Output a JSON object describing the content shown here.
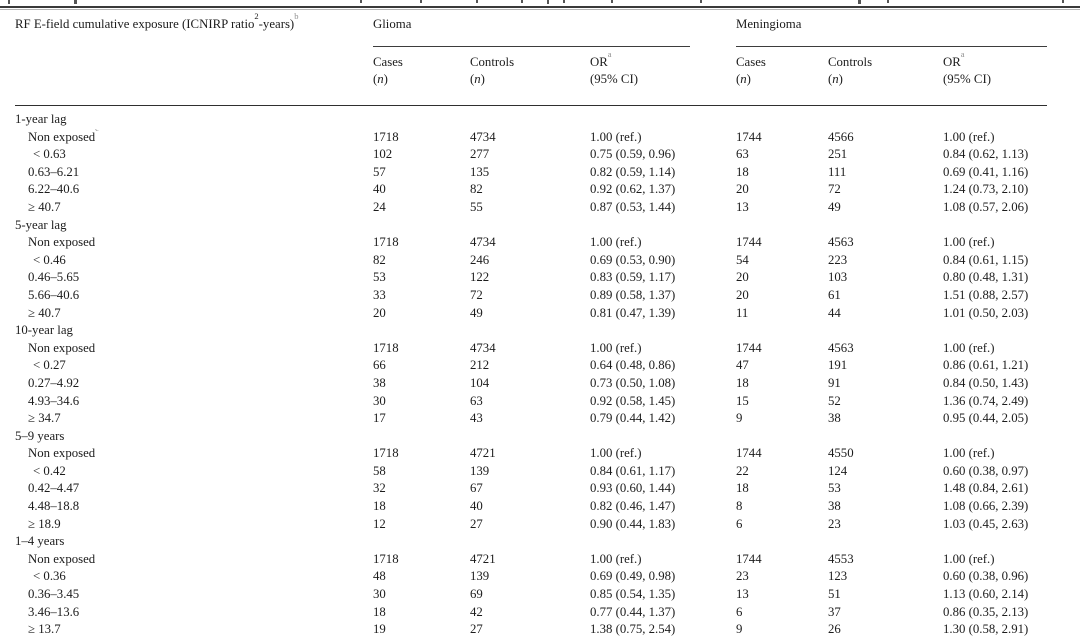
{
  "colors": {
    "text": "#1c1c1c",
    "rule": "#2f2f2f",
    "footnote_marker": "#8e8e8e",
    "background": "#ffffff"
  },
  "table": {
    "stub_header": {
      "text_before": "RF E-field cumulative exposure (ICNIRP ratio",
      "sup_unit": "2",
      "text_after": "-years)",
      "sup_footnote": "b"
    },
    "group_headers": {
      "glioma": "Glioma",
      "meningioma": "Meningioma"
    },
    "column_headers": {
      "cases_line1": "Cases",
      "controls_line1": "Controls",
      "or_label": "OR",
      "or_sup": "a",
      "or_line2": "(95% CI)",
      "n_paren_open": "(",
      "n_italic": "n",
      "n_paren_close": ")"
    },
    "sections": [
      {
        "label": "1-year lag",
        "rows": [
          {
            "label": "Non exposed",
            "sup": "c",
            "extra_indent": false,
            "g": [
              "1718",
              "4734",
              "1.00 (ref.)"
            ],
            "m": [
              "1744",
              "4566",
              "1.00 (ref.)"
            ]
          },
          {
            "label": "< 0.63",
            "extra_indent": true,
            "g": [
              "102",
              "277",
              "0.75 (0.59, 0.96)"
            ],
            "m": [
              "63",
              "251",
              "0.84 (0.62, 1.13)"
            ]
          },
          {
            "label": "0.63–6.21",
            "extra_indent": false,
            "g": [
              "57",
              "135",
              "0.82 (0.59, 1.14)"
            ],
            "m": [
              "18",
              "111",
              "0.69 (0.41, 1.16)"
            ]
          },
          {
            "label": "6.22–40.6",
            "extra_indent": false,
            "g": [
              "40",
              "82",
              "0.92 (0.62, 1.37)"
            ],
            "m": [
              "20",
              "72",
              "1.24 (0.73, 2.10)"
            ]
          },
          {
            "label": "≥ 40.7",
            "extra_indent": false,
            "g": [
              "24",
              "55",
              "0.87 (0.53, 1.44)"
            ],
            "m": [
              "13",
              "49",
              "1.08 (0.57, 2.06)"
            ]
          }
        ]
      },
      {
        "label": "5-year lag",
        "rows": [
          {
            "label": "Non exposed",
            "extra_indent": false,
            "g": [
              "1718",
              "4734",
              "1.00 (ref.)"
            ],
            "m": [
              "1744",
              "4563",
              "1.00 (ref.)"
            ]
          },
          {
            "label": "< 0.46",
            "extra_indent": true,
            "g": [
              "82",
              "246",
              "0.69 (0.53, 0.90)"
            ],
            "m": [
              "54",
              "223",
              "0.84 (0.61, 1.15)"
            ]
          },
          {
            "label": "0.46–5.65",
            "extra_indent": false,
            "g": [
              "53",
              "122",
              "0.83 (0.59, 1.17)"
            ],
            "m": [
              "20",
              "103",
              "0.80 (0.48, 1.31)"
            ]
          },
          {
            "label": "5.66–40.6",
            "extra_indent": false,
            "g": [
              "33",
              "72",
              "0.89 (0.58, 1.37)"
            ],
            "m": [
              "20",
              "61",
              "1.51 (0.88, 2.57)"
            ]
          },
          {
            "label": "≥ 40.7",
            "extra_indent": false,
            "g": [
              "20",
              "49",
              "0.81 (0.47, 1.39)"
            ],
            "m": [
              "11",
              "44",
              "1.01 (0.50, 2.03)"
            ]
          }
        ]
      },
      {
        "label": "10-year lag",
        "rows": [
          {
            "label": "Non exposed",
            "extra_indent": false,
            "g": [
              "1718",
              "4734",
              "1.00 (ref.)"
            ],
            "m": [
              "1744",
              "4563",
              "1.00 (ref.)"
            ]
          },
          {
            "label": "< 0.27",
            "extra_indent": true,
            "g": [
              "66",
              "212",
              "0.64 (0.48, 0.86)"
            ],
            "m": [
              "47",
              "191",
              "0.86 (0.61, 1.21)"
            ]
          },
          {
            "label": "0.27–4.92",
            "extra_indent": false,
            "g": [
              "38",
              "104",
              "0.73 (0.50, 1.08)"
            ],
            "m": [
              "18",
              "91",
              "0.84 (0.50, 1.43)"
            ]
          },
          {
            "label": "4.93–34.6",
            "extra_indent": false,
            "g": [
              "30",
              "63",
              "0.92 (0.58, 1.45)"
            ],
            "m": [
              "15",
              "52",
              "1.36 (0.74, 2.49)"
            ]
          },
          {
            "label": "≥ 34.7",
            "extra_indent": false,
            "g": [
              "17",
              "43",
              "0.79 (0.44, 1.42)"
            ],
            "m": [
              "9",
              "38",
              "0.95 (0.44, 2.05)"
            ]
          }
        ]
      },
      {
        "label": "5–9 years",
        "rows": [
          {
            "label": "Non exposed",
            "extra_indent": false,
            "g": [
              "1718",
              "4721",
              "1.00 (ref.)"
            ],
            "m": [
              "1744",
              "4550",
              "1.00 (ref.)"
            ]
          },
          {
            "label": "< 0.42",
            "extra_indent": true,
            "g": [
              "58",
              "139",
              "0.84 (0.61, 1.17)"
            ],
            "m": [
              "22",
              "124",
              "0.60 (0.38, 0.97)"
            ]
          },
          {
            "label": "0.42–4.47",
            "extra_indent": false,
            "g": [
              "32",
              "67",
              "0.93 (0.60, 1.44)"
            ],
            "m": [
              "18",
              "53",
              "1.48 (0.84, 2.61)"
            ]
          },
          {
            "label": "4.48–18.8",
            "extra_indent": false,
            "g": [
              "18",
              "40",
              "0.82 (0.46, 1.47)"
            ],
            "m": [
              "8",
              "38",
              "1.08 (0.66, 2.39)"
            ]
          },
          {
            "label": "≥ 18.9",
            "extra_indent": false,
            "g": [
              "12",
              "27",
              "0.90 (0.44, 1.83)"
            ],
            "m": [
              "6",
              "23",
              "1.03 (0.45, 2.63)"
            ]
          }
        ]
      },
      {
        "label": "1–4 years",
        "rows": [
          {
            "label": "Non exposed",
            "extra_indent": false,
            "g": [
              "1718",
              "4721",
              "1.00 (ref.)"
            ],
            "m": [
              "1744",
              "4553",
              "1.00 (ref.)"
            ]
          },
          {
            "label": "< 0.36",
            "extra_indent": true,
            "g": [
              "48",
              "139",
              "0.69 (0.49, 0.98)"
            ],
            "m": [
              "23",
              "123",
              "0.60 (0.38, 0.96)"
            ]
          },
          {
            "label": "0.36–3.45",
            "extra_indent": false,
            "g": [
              "30",
              "69",
              "0.85 (0.54, 1.35)"
            ],
            "m": [
              "13",
              "51",
              "1.13 (0.60, 2.14)"
            ]
          },
          {
            "label": "3.46–13.6",
            "extra_indent": false,
            "g": [
              "18",
              "42",
              "0.77 (0.44, 1.37)"
            ],
            "m": [
              "6",
              "37",
              "0.86 (0.35, 2.13)"
            ]
          },
          {
            "label": "≥ 13.7",
            "extra_indent": false,
            "g": [
              "19",
              "27",
              "1.38 (0.75, 2.54)"
            ],
            "m": [
              "9",
              "26",
              "1.30 (0.58, 2.91)"
            ]
          }
        ]
      }
    ]
  }
}
